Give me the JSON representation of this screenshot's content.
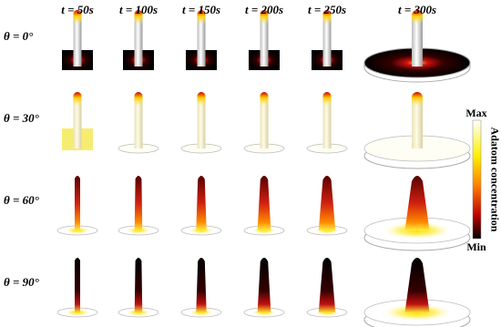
{
  "columns": [
    "t = 50s",
    "t = 100s",
    "t = 150s",
    "t = 200s",
    "t = 250s",
    "t = 300s"
  ],
  "rows": [
    "θ = 0°",
    "θ = 30°",
    "θ = 60°",
    "θ = 90°"
  ],
  "colorbar": {
    "max": "Max",
    "min": "Min",
    "label": "Adatom concentration"
  }
}
